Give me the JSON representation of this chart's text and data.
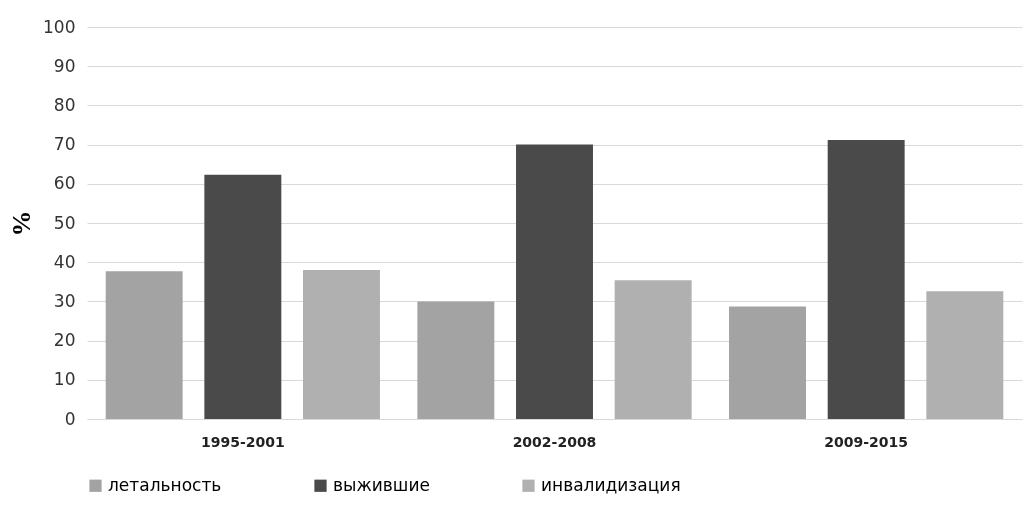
{
  "chart_data": {
    "type": "bar",
    "ylabel": "%",
    "categories": [
      "1995-2001",
      "2002-2008",
      "2009-2015"
    ],
    "series": [
      {
        "name": "летальность",
        "color": "#a3a3a3",
        "values": [
          37.7,
          30,
          28.7
        ]
      },
      {
        "name": "выжившие",
        "color": "#4a4a4a",
        "values": [
          62.3,
          70,
          71.2
        ]
      },
      {
        "name": "инвалидизация",
        "color": "#b0b0b0",
        "values": [
          38,
          35.4,
          32.6
        ]
      }
    ],
    "ylim": [
      0,
      100
    ],
    "yticks": [
      0,
      10,
      20,
      30,
      40,
      50,
      60,
      70,
      80,
      90,
      100
    ],
    "grid": "y",
    "legend": "bottom"
  }
}
